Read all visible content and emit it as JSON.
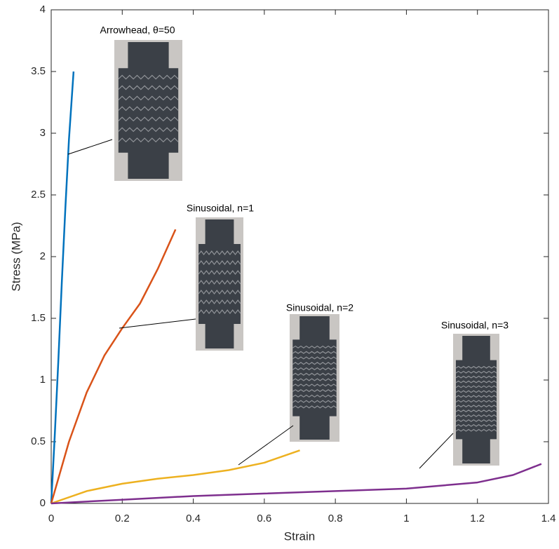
{
  "chart_data": {
    "type": "line",
    "xlabel": "Strain",
    "ylabel": "Stress (MPa)",
    "xlim": [
      0,
      1.4
    ],
    "xticks": [
      0,
      0.2,
      0.4,
      0.6,
      0.8,
      1,
      1.2,
      1.4
    ],
    "ylim": [
      0,
      4
    ],
    "yticks": [
      0,
      0.5,
      1,
      1.5,
      2,
      2.5,
      3,
      3.5,
      4
    ],
    "series": [
      {
        "color": "#0072BD",
        "x": [
          0,
          0.01,
          0.02,
          0.03,
          0.04,
          0.05,
          0.063
        ],
        "values": [
          0,
          0.55,
          1.15,
          1.8,
          2.4,
          2.95,
          3.5
        ]
      },
      {
        "color": "#D95319",
        "x": [
          0,
          0.05,
          0.1,
          0.15,
          0.2,
          0.25,
          0.3,
          0.35
        ],
        "values": [
          0,
          0.5,
          0.9,
          1.2,
          1.42,
          1.62,
          1.9,
          2.22
        ]
      },
      {
        "color": "#EDB120",
        "x": [
          0,
          0.1,
          0.2,
          0.3,
          0.4,
          0.5,
          0.6,
          0.7
        ],
        "values": [
          0,
          0.1,
          0.16,
          0.2,
          0.23,
          0.27,
          0.33,
          0.43
        ]
      },
      {
        "color": "#7E2F8E",
        "x": [
          0,
          0.2,
          0.4,
          0.6,
          0.8,
          1.0,
          1.2,
          1.3,
          1.38
        ],
        "values": [
          0,
          0.03,
          0.06,
          0.08,
          0.1,
          0.12,
          0.17,
          0.23,
          0.32
        ]
      }
    ],
    "annotations": [
      "Arrowhead, θ=50",
      "Sinusoidal, n=1",
      "Sinusoidal, n=2",
      "Sinusoidal, n=3"
    ]
  }
}
